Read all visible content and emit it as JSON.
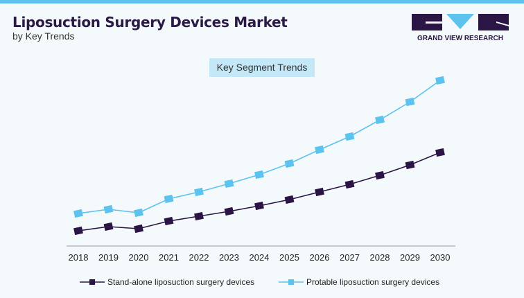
{
  "header": {
    "title": "Liposuction Surgery Devices Market",
    "subtitle": "by Key Trends",
    "logo_text": "GRAND VIEW RESEARCH"
  },
  "chart_data": {
    "type": "line",
    "title": "Key Segment Trends",
    "categories": [
      "2018",
      "2019",
      "2020",
      "2021",
      "2022",
      "2023",
      "2024",
      "2025",
      "2026",
      "2027",
      "2028",
      "2029",
      "2030"
    ],
    "series": [
      {
        "name": "Stand-alone liposuction surgery devices",
        "color": "#2b1545",
        "values": [
          22,
          28,
          25,
          36,
          43,
          50,
          58,
          67,
          78,
          89,
          102,
          117,
          135
        ]
      },
      {
        "name": "Protable liposuction surgery devices",
        "color": "#5bc3ee",
        "values": [
          47,
          53,
          48,
          68,
          78,
          90,
          103,
          119,
          139,
          158,
          182,
          208,
          239
        ]
      }
    ],
    "ylim": [
      0,
      250
    ],
    "grid": false,
    "legend_placement": "bottom"
  }
}
